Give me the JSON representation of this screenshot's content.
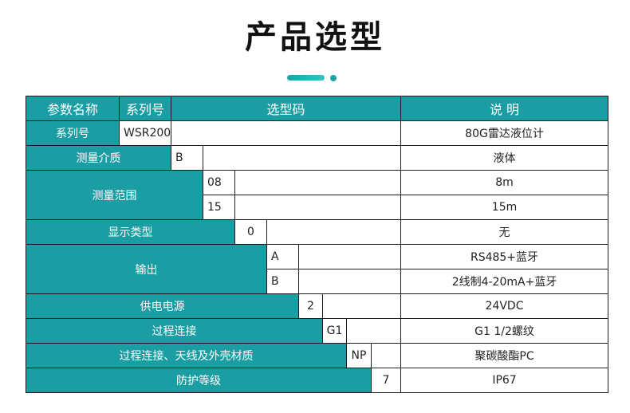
{
  "title": "产品选型",
  "header": {
    "param_name": "参数名称",
    "series_no": "系列号",
    "code": "选型码",
    "desc": "说 明"
  },
  "rows": [
    {
      "param": "系列号",
      "code": "WSR200",
      "desc": "80G雷达液位计"
    },
    {
      "param": "测量介质",
      "code": "B",
      "desc": "液体"
    },
    {
      "param": "测量范围",
      "codes": [
        "08",
        "15"
      ],
      "descs": [
        "8m",
        "15m"
      ]
    },
    {
      "param": "显示类型",
      "code": "0",
      "desc": "无"
    },
    {
      "param": "输出",
      "codes": [
        "A",
        "B"
      ],
      "descs": [
        "RS485+蓝牙",
        "2线制4-20mA+蓝牙"
      ]
    },
    {
      "param": "供电电源",
      "code": "2",
      "desc": "24VDC"
    },
    {
      "param": "过程连接",
      "code": "G1",
      "desc": "G1 1/2螺纹"
    },
    {
      "param": "过程连接、天线及外壳材质",
      "code": "NP",
      "desc": "聚碳酸酯PC"
    },
    {
      "param": "防护等级",
      "code": "7",
      "desc": "IP67"
    }
  ],
  "colors": {
    "accent": "#1a9ea3",
    "border": "#1b1b1b"
  }
}
